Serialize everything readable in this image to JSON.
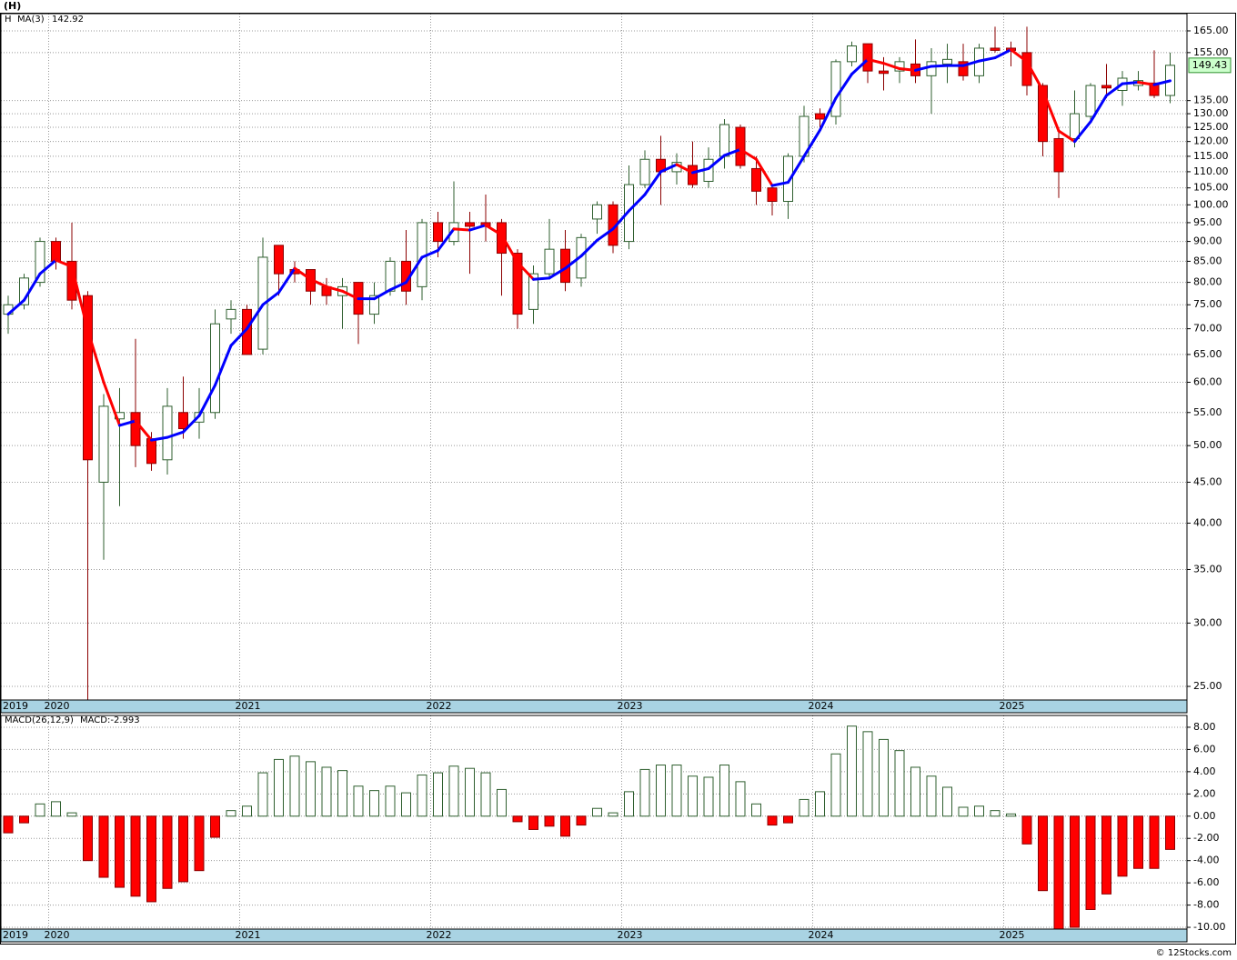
{
  "chart_data": [
    {
      "type": "candlestick",
      "title": "(H)",
      "symbol": "H",
      "categories": [
        "2019",
        null,
        null,
        "2020",
        null,
        null,
        null,
        null,
        null,
        null,
        null,
        null,
        null,
        null,
        null,
        "2021",
        null,
        null,
        null,
        null,
        null,
        null,
        null,
        null,
        null,
        null,
        null,
        "2022",
        null,
        null,
        null,
        null,
        null,
        null,
        null,
        null,
        null,
        null,
        null,
        "2023",
        null,
        null,
        null,
        null,
        null,
        null,
        null,
        null,
        null,
        null,
        null,
        "2024",
        null,
        null,
        null,
        null,
        null,
        null,
        null,
        null,
        null,
        null,
        null,
        "2025",
        null,
        null,
        null,
        null,
        null,
        null,
        null,
        null,
        null,
        null
      ],
      "open": [
        73,
        75,
        80,
        90,
        85,
        77,
        45,
        54,
        55,
        51,
        48,
        55,
        53.5,
        55,
        72,
        74,
        66,
        89,
        83,
        83,
        79,
        77,
        80,
        73,
        78,
        85,
        79,
        95,
        90,
        95,
        95,
        95,
        87,
        74,
        82,
        88,
        81,
        96,
        100,
        90,
        106,
        114,
        110,
        112,
        107,
        115,
        125,
        111,
        105,
        101,
        115,
        130,
        129,
        151,
        159,
        147,
        147,
        150,
        145,
        150,
        151,
        145,
        157,
        157,
        155,
        141,
        121,
        121,
        129,
        141,
        139,
        141,
        142,
        137
      ],
      "high": [
        77,
        82,
        91,
        91,
        95,
        78,
        58,
        59,
        68,
        52,
        59,
        61,
        59,
        74,
        76,
        75,
        91,
        89,
        85,
        83,
        81,
        81,
        80,
        80,
        86,
        93,
        96,
        98,
        107,
        98,
        103,
        96,
        88,
        84,
        96,
        93,
        92,
        101,
        101,
        112,
        117,
        122,
        116,
        120,
        118,
        128,
        126,
        115,
        106,
        116,
        133,
        132,
        152,
        160,
        159,
        153,
        153,
        161,
        157,
        159,
        159,
        159,
        167,
        160,
        167,
        142,
        125,
        139,
        142,
        150,
        147,
        147,
        156,
        155
      ],
      "low": [
        69,
        74,
        79,
        83,
        74,
        24,
        36,
        42,
        47,
        46.5,
        46,
        51,
        51,
        54,
        69,
        65,
        65,
        77,
        80,
        75,
        75,
        70,
        67,
        71,
        77,
        75,
        76,
        86,
        89,
        82,
        90,
        77,
        70,
        71,
        81,
        78,
        79,
        92,
        87,
        88,
        105,
        100,
        106,
        105,
        105,
        111,
        111,
        100,
        97,
        96,
        113,
        125,
        126,
        149,
        142,
        139,
        142,
        142,
        130,
        142,
        143,
        142,
        155,
        149,
        137,
        115,
        102,
        118,
        127,
        136,
        133,
        139,
        136,
        134
      ],
      "close": [
        75,
        81,
        90,
        85,
        76,
        48,
        56,
        55,
        50,
        47.5,
        56,
        52.5,
        55,
        71,
        74,
        65,
        86,
        82,
        82,
        78,
        77,
        79,
        73,
        77,
        85,
        78,
        95,
        90,
        95,
        94,
        94,
        87,
        73,
        82,
        88,
        80,
        91,
        100,
        89,
        106,
        114,
        110,
        113,
        106,
        114,
        126,
        112,
        104,
        101,
        115,
        129,
        128,
        151,
        158,
        147,
        146,
        151,
        145,
        151,
        152,
        145,
        157,
        156,
        156,
        141,
        120,
        110,
        130,
        141,
        140,
        144,
        143,
        137,
        149.43
      ],
      "up_color": "#ffffff",
      "down_color": "#ff0000",
      "outline_color": "#2f5f2f",
      "ma": {
        "name": "MA(3)",
        "rising_color": "#0000ff",
        "falling_color": "#ff0000",
        "values": [
          73,
          76,
          82,
          85.3,
          83.7,
          69.7,
          60,
          53,
          53.7,
          50.8,
          51.2,
          52,
          54.5,
          59.5,
          66.7,
          70,
          75,
          77.7,
          83.3,
          80.7,
          79,
          78,
          76.3,
          76.3,
          78.3,
          80,
          86,
          87.7,
          93.3,
          93,
          94.3,
          91.7,
          84.7,
          80.7,
          81,
          83.3,
          86.3,
          90.3,
          93.3,
          98.3,
          103,
          110,
          112.3,
          109.7,
          111,
          115.3,
          117.3,
          114,
          105.7,
          106.7,
          115,
          124,
          136,
          145.7,
          152,
          150.3,
          148,
          147.3,
          149,
          149.3,
          149.3,
          151.3,
          152.7,
          156.3,
          151,
          139,
          123.7,
          120,
          127,
          137,
          141.7,
          142.3,
          141.3,
          142.92
        ]
      },
      "log_scale": true,
      "grid": true,
      "ylim": [
        24.04,
        173.4
      ],
      "yticks": [
        {
          "value": 165,
          "label": "165.00"
        },
        {
          "value": 155,
          "label": "155.00"
        },
        {
          "value": 135,
          "label": "135.00"
        },
        {
          "value": 130,
          "label": "130.00"
        },
        {
          "value": 125,
          "label": "125.00"
        },
        {
          "value": 120,
          "label": "120.00"
        },
        {
          "value": 115,
          "label": "115.00"
        },
        {
          "value": 110,
          "label": "110.00"
        },
        {
          "value": 105,
          "label": "105.00"
        },
        {
          "value": 100,
          "label": "100.00"
        },
        {
          "value": 95,
          "label": "95.00"
        },
        {
          "value": 90,
          "label": "90.00"
        },
        {
          "value": 85,
          "label": "85.00"
        },
        {
          "value": 80,
          "label": "80.00"
        },
        {
          "value": 75,
          "label": "75.00"
        },
        {
          "value": 70,
          "label": "70.00"
        },
        {
          "value": 65,
          "label": "65.00"
        },
        {
          "value": 60,
          "label": "60.00"
        },
        {
          "value": 55,
          "label": "55.00"
        },
        {
          "value": 50,
          "label": "50.00"
        },
        {
          "value": 45,
          "label": "45.00"
        },
        {
          "value": 40,
          "label": "40.00"
        },
        {
          "value": 35,
          "label": "35.00"
        },
        {
          "value": 30,
          "label": "30.00"
        },
        {
          "value": 25,
          "label": "25.00"
        }
      ]
    },
    {
      "type": "bar",
      "name": "MACD(26,12,9)",
      "series_label": "MACD:",
      "values": [
        -1.5,
        -0.6,
        1.1,
        1.3,
        0.3,
        -4,
        -5.5,
        -6.4,
        -7.2,
        -7.7,
        -6.5,
        -5.9,
        -4.9,
        -1.9,
        0.5,
        0.9,
        3.9,
        5.1,
        5.4,
        4.9,
        4.4,
        4.1,
        2.7,
        2.3,
        2.7,
        2.1,
        3.7,
        3.9,
        4.5,
        4.3,
        3.9,
        2.4,
        -0.5,
        -1.2,
        -0.9,
        -1.8,
        -0.8,
        0.7,
        0.3,
        2.2,
        4.2,
        4.6,
        4.6,
        3.6,
        3.5,
        4.6,
        3.1,
        1.1,
        -0.8,
        -0.6,
        1.5,
        2.2,
        5.6,
        8.1,
        7.6,
        6.9,
        5.9,
        4.4,
        3.6,
        2.6,
        0.8,
        0.9,
        0.5,
        0.2,
        -2.5,
        -6.7,
        -10.5,
        -10,
        -8.4,
        -7,
        -5.4,
        -4.7,
        -4.7,
        -2.993
      ],
      "positive_color": "#ffffff",
      "negative_color": "#ff0000",
      "outline_color": "#2f5f2f",
      "grid": true,
      "ylim": [
        -10.16,
        9.06
      ],
      "yticks": [
        {
          "value": 8,
          "label": "8.00"
        },
        {
          "value": 6,
          "label": "6.00"
        },
        {
          "value": 4,
          "label": "4.00"
        },
        {
          "value": 2,
          "label": "2.00"
        },
        {
          "value": 0,
          "label": "0.00"
        },
        {
          "value": -2,
          "label": "-2.00"
        },
        {
          "value": -4,
          "label": "-4.00"
        },
        {
          "value": -6,
          "label": "-6.00"
        },
        {
          "value": -8,
          "label": "-8.00"
        },
        {
          "value": -10,
          "label": "-10.00"
        }
      ]
    }
  ],
  "copyright": "© 12Stocks.com"
}
